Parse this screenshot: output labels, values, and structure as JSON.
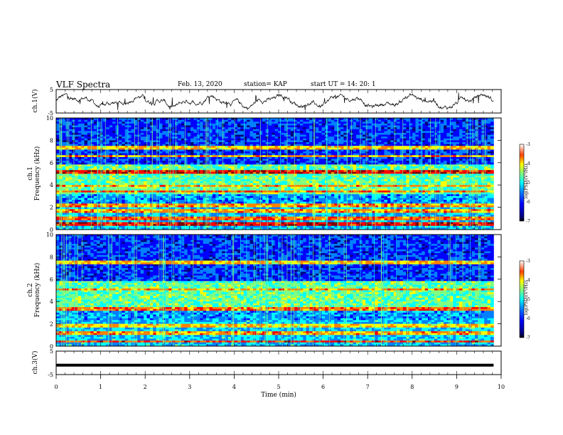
{
  "header": {
    "title": "VLF Spectra",
    "date": "Feb. 13, 2020",
    "station": "station= KAP",
    "start_ut": "start  UT =   14: 20: 1"
  },
  "colors": {
    "colormap": [
      "#00007f",
      "#0000ff",
      "#0080ff",
      "#00ffff",
      "#80ff80",
      "#ffff00",
      "#ff8000",
      "#ff0000",
      "#7f0000"
    ]
  },
  "chart_data": [
    {
      "type": "line",
      "panel": "ch1-waveform",
      "ylabel": "ch.1(V)",
      "ylim": [
        -5,
        5
      ],
      "yticks": [
        "5",
        "-5"
      ],
      "xlim": [
        0,
        10
      ],
      "series": [
        {
          "values": "noisy waveform fluctuating roughly between -4 and 4 V over 0 to 9.8 min"
        }
      ]
    },
    {
      "type": "heatmap",
      "panel": "ch1-spectrogram",
      "ylabel": "ch.1\nFrequency (kHz)",
      "ylim": [
        0,
        10
      ],
      "yticks": [
        "0",
        "2",
        "4",
        "6",
        "8",
        "10"
      ],
      "xlim": [
        0,
        10
      ],
      "colorbar": {
        "label": "log(PSD)(V²/Hz)",
        "range": [
          -7,
          -3
        ],
        "ticks": [
          "-3",
          "-4",
          "-5",
          "-6",
          "-7"
        ]
      }
    },
    {
      "type": "heatmap",
      "panel": "ch2-spectrogram",
      "ylabel": "ch.2\nFrequency (kHz)",
      "ylim": [
        0,
        10
      ],
      "yticks": [
        "0",
        "2",
        "4",
        "6",
        "8",
        "10"
      ],
      "xlim": [
        0,
        10
      ],
      "colorbar": {
        "label": "log(PSD)(V²/Hz)",
        "range": [
          -7,
          -3
        ],
        "ticks": [
          "-3",
          "-4",
          "-5",
          "-6",
          "-7"
        ]
      }
    },
    {
      "type": "line",
      "panel": "ch3-waveform",
      "ylabel": "ch.3(V)",
      "ylim": [
        -5,
        5
      ],
      "yticks": [
        "5",
        "-5"
      ],
      "xlim": [
        0,
        10
      ],
      "series": [
        {
          "values": "flat line at approximately -1 V over 0 to 9.8 min"
        }
      ]
    }
  ],
  "xaxis": {
    "label": "Time (min)",
    "ticks": [
      "0",
      "1",
      "2",
      "3",
      "4",
      "5",
      "6",
      "7",
      "8",
      "9",
      "10"
    ]
  }
}
